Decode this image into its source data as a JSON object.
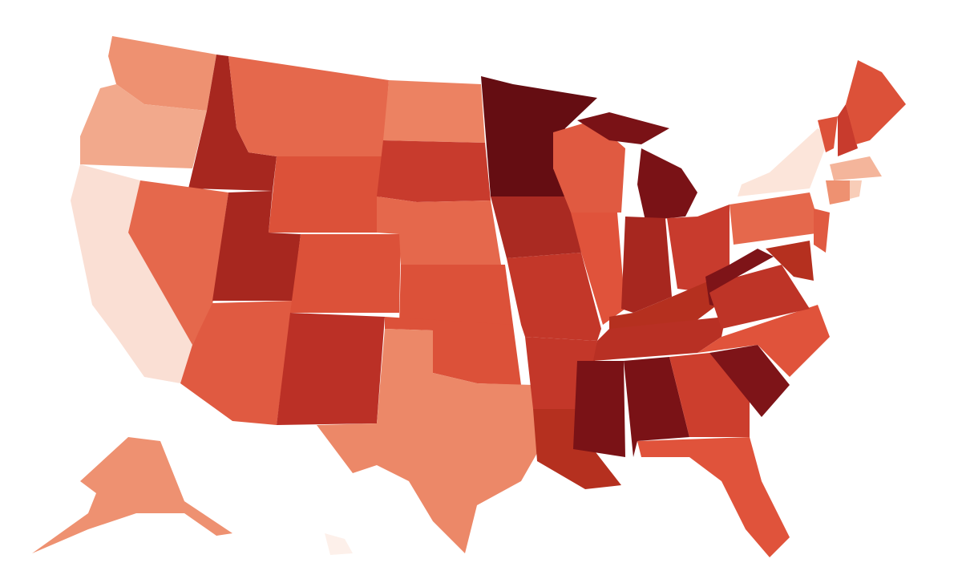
{
  "map": {
    "background": "#ffffff",
    "regions": [
      {
        "color": "#ee9171"
      },
      {
        "color": "#f2a98c"
      },
      {
        "color": "#fadfd4"
      },
      {
        "color": "#a7271f"
      },
      {
        "color": "#e5684c"
      },
      {
        "color": "#e5684c"
      },
      {
        "color": "#dc5139"
      },
      {
        "color": "#a7271f"
      },
      {
        "color": "#e05a41"
      },
      {
        "color": "#dc5139"
      },
      {
        "color": "#bb3026"
      },
      {
        "color": "#ec8262"
      },
      {
        "color": "#c83b2d"
      },
      {
        "color": "#e5684c"
      },
      {
        "color": "#dc5139"
      },
      {
        "color": "#dc5139"
      },
      {
        "color": "#ec8868"
      },
      {
        "color": "#650d12"
      },
      {
        "color": "#aa2a22"
      },
      {
        "color": "#c33729"
      },
      {
        "color": "#c33729"
      },
      {
        "color": "#b5301f"
      },
      {
        "color": "#e05a41"
      },
      {
        "color": "#e0533b"
      },
      {
        "color": "#7a1216"
      },
      {
        "color": "#7a1216"
      },
      {
        "color": "#a7271f"
      },
      {
        "color": "#c83b2d"
      },
      {
        "color": "#b5301f"
      },
      {
        "color": "#b83024"
      },
      {
        "color": "#7a1216"
      },
      {
        "color": "#7a1216"
      },
      {
        "color": "#cc3e2d"
      },
      {
        "color": "#e0533b"
      },
      {
        "color": "#7e1418"
      },
      {
        "color": "#e0533b"
      },
      {
        "color": "#7e1418"
      },
      {
        "color": "#be3427"
      },
      {
        "color": "#fce5da"
      },
      {
        "color": "#e5684c"
      },
      {
        "color": "#e05a41"
      },
      {
        "color": "#b5301f"
      },
      {
        "color": "#f4b59b"
      },
      {
        "color": "#ee9171"
      },
      {
        "color": "#f8cdb8"
      },
      {
        "color": "#dc5139"
      },
      {
        "color": "#c83b2d"
      },
      {
        "color": "#dc5139"
      },
      {
        "color": "#ee9171"
      },
      {
        "color": "#fdf0ea"
      }
    ]
  }
}
